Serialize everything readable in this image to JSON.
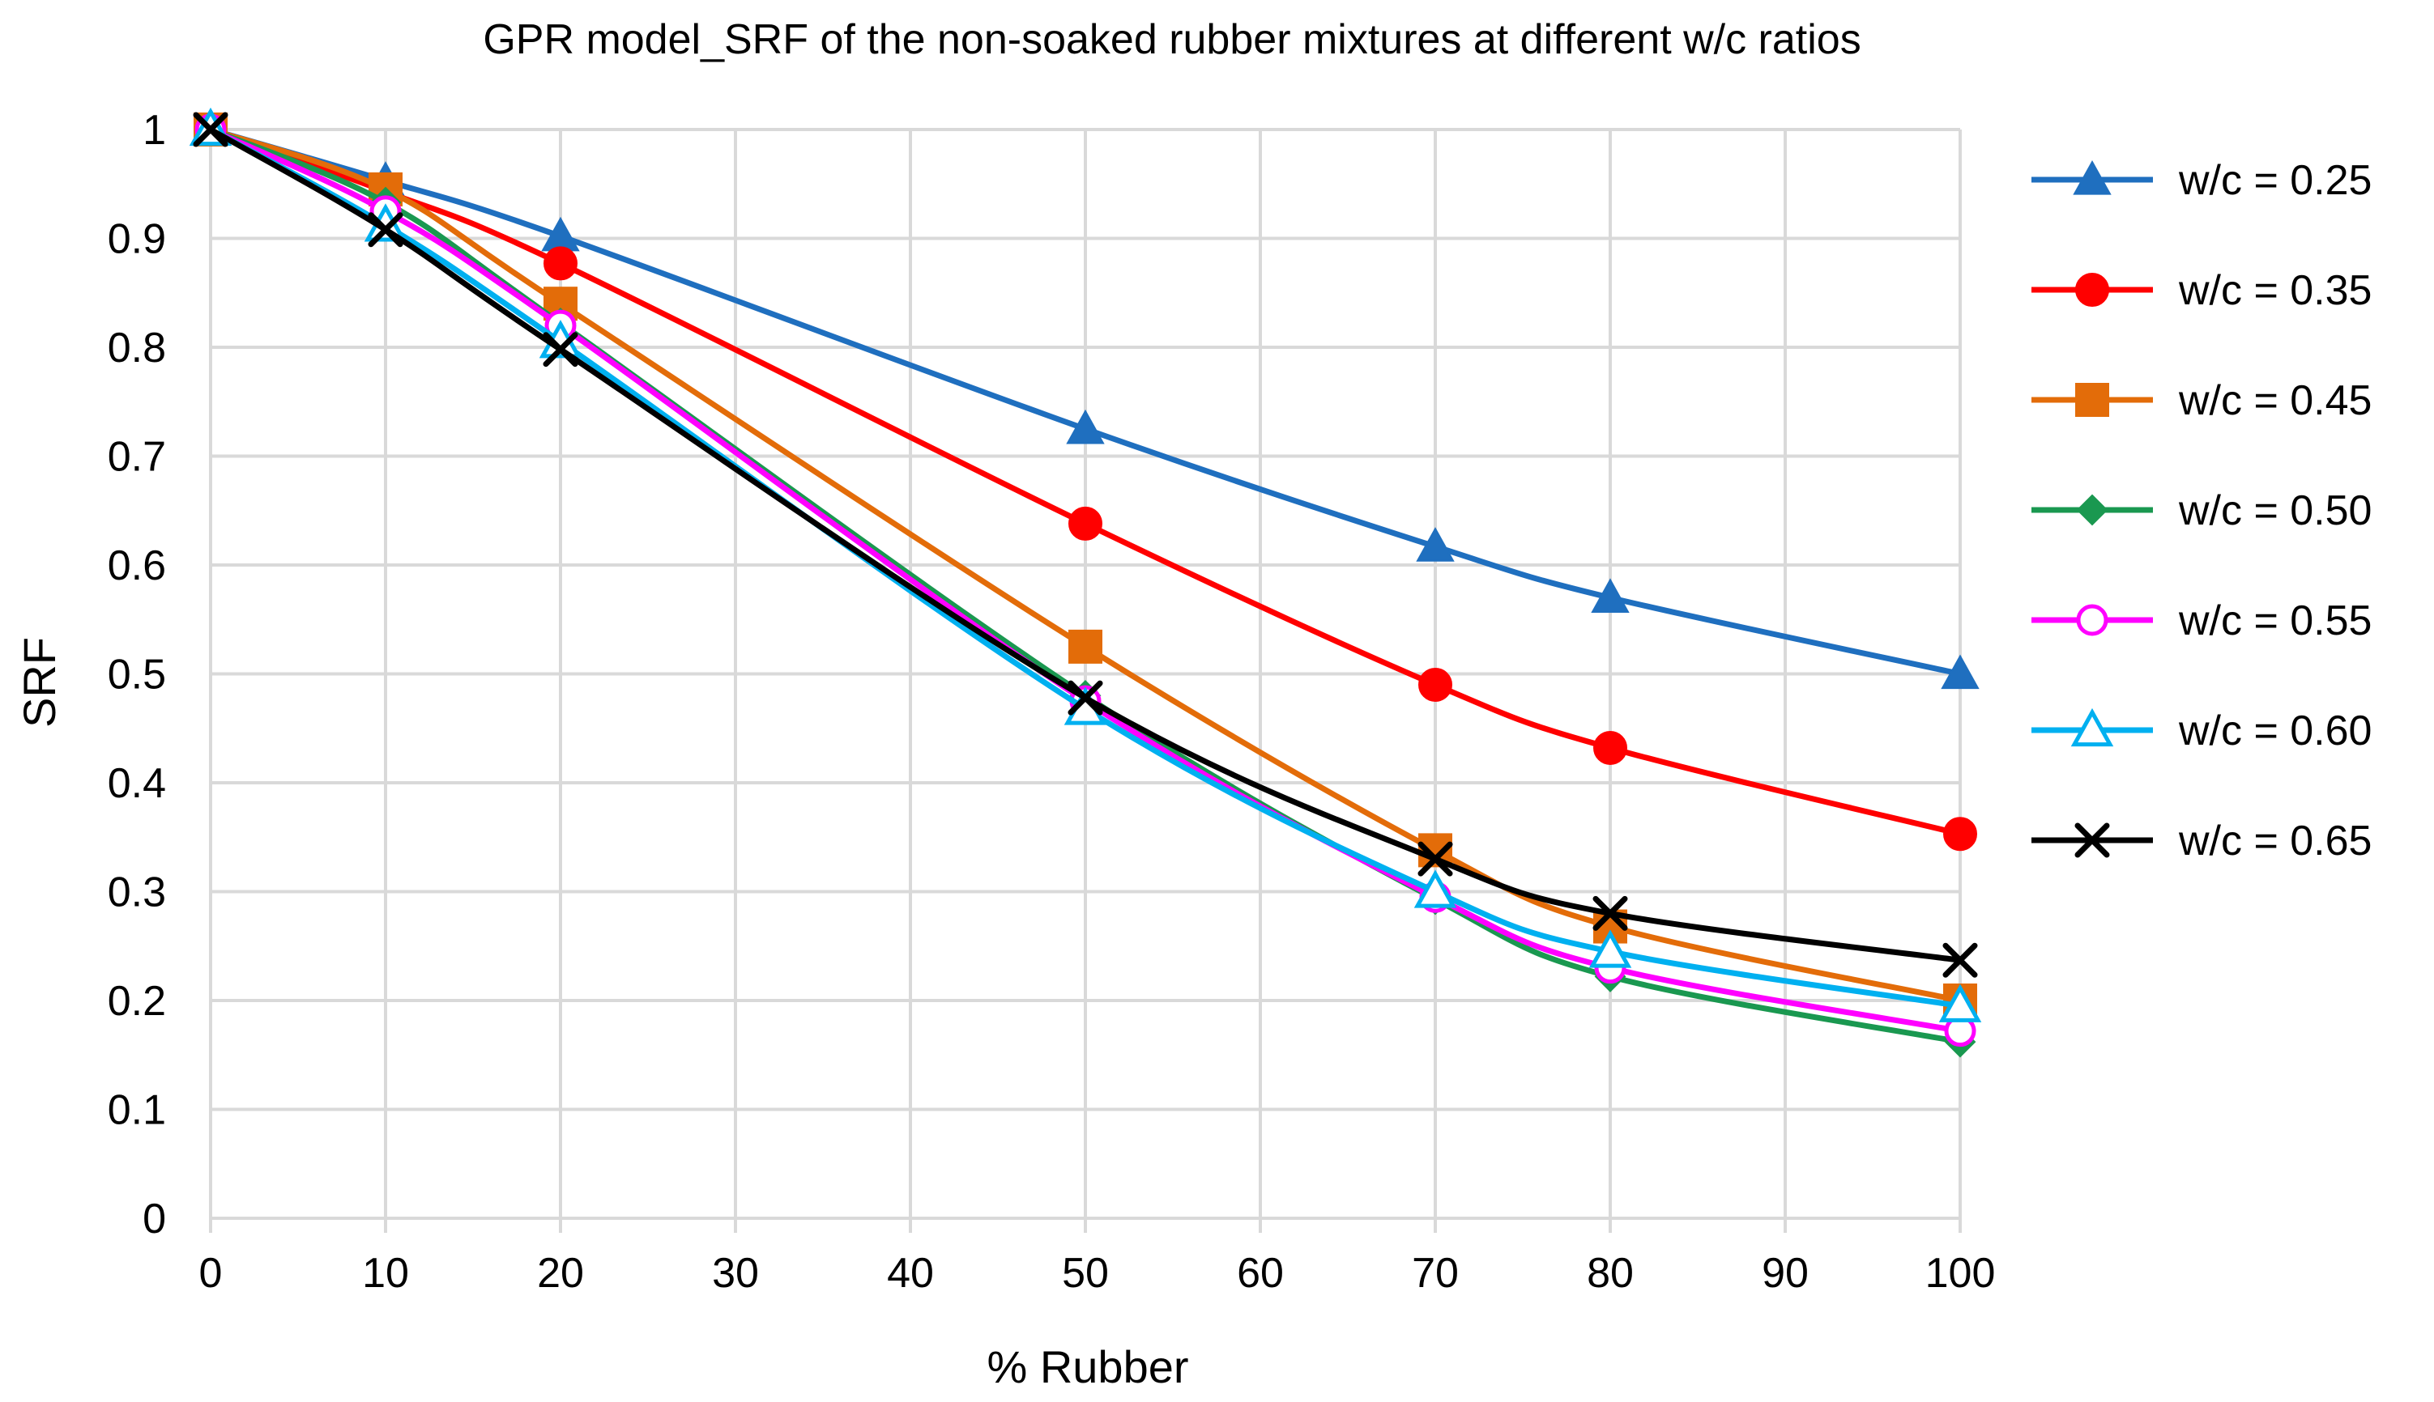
{
  "chart_data": {
    "type": "line",
    "title": "GPR model_SRF of the non-soaked rubber mixtures at different w/c ratios",
    "xlabel": "% Rubber",
    "ylabel": "SRF",
    "xlim": [
      0,
      100
    ],
    "ylim": [
      0,
      1
    ],
    "xticks": [
      0,
      10,
      20,
      30,
      40,
      50,
      60,
      70,
      80,
      90,
      100
    ],
    "yticks": [
      0,
      0.1,
      0.2,
      0.3,
      0.4,
      0.5,
      0.6,
      0.7,
      0.8,
      0.9,
      1
    ],
    "ytick_labels": [
      "0",
      "0.1",
      "0.2",
      "0.3",
      "0.4",
      "0.5",
      "0.6",
      "0.7",
      "0.8",
      "0.9",
      "1"
    ],
    "grid": true,
    "legend_position": "right",
    "x": [
      0,
      10,
      20,
      50,
      70,
      80,
      100
    ],
    "series": [
      {
        "name": "w/c = 0.25",
        "color": "#1f6fbf",
        "marker": "triangle-filled",
        "values": [
          1.0,
          0.953,
          0.902,
          0.725,
          0.617,
          0.57,
          0.5
        ]
      },
      {
        "name": "w/c = 0.35",
        "color": "#ff0000",
        "marker": "circle-filled",
        "values": [
          1.0,
          0.943,
          0.877,
          0.638,
          0.49,
          0.432,
          0.353
        ]
      },
      {
        "name": "w/c = 0.45",
        "color": "#e36c09",
        "marker": "square-filled",
        "values": [
          1.0,
          0.945,
          0.84,
          0.525,
          0.338,
          0.268,
          0.2
        ]
      },
      {
        "name": "w/c = 0.50",
        "color": "#1a9850",
        "marker": "diamond-filled",
        "values": [
          1.0,
          0.933,
          0.822,
          0.48,
          0.293,
          0.222,
          0.162
        ]
      },
      {
        "name": "w/c = 0.55",
        "color": "#ff00ff",
        "marker": "circle-open",
        "values": [
          1.0,
          0.925,
          0.82,
          0.475,
          0.295,
          0.23,
          0.172
        ]
      },
      {
        "name": "w/c = 0.60",
        "color": "#00b0f0",
        "marker": "triangle-open",
        "values": [
          1.0,
          0.912,
          0.805,
          0.468,
          0.3,
          0.245,
          0.195
        ]
      },
      {
        "name": "w/c = 0.65",
        "color": "#000000",
        "marker": "x",
        "values": [
          1.0,
          0.908,
          0.798,
          0.478,
          0.33,
          0.28,
          0.237
        ]
      }
    ]
  }
}
